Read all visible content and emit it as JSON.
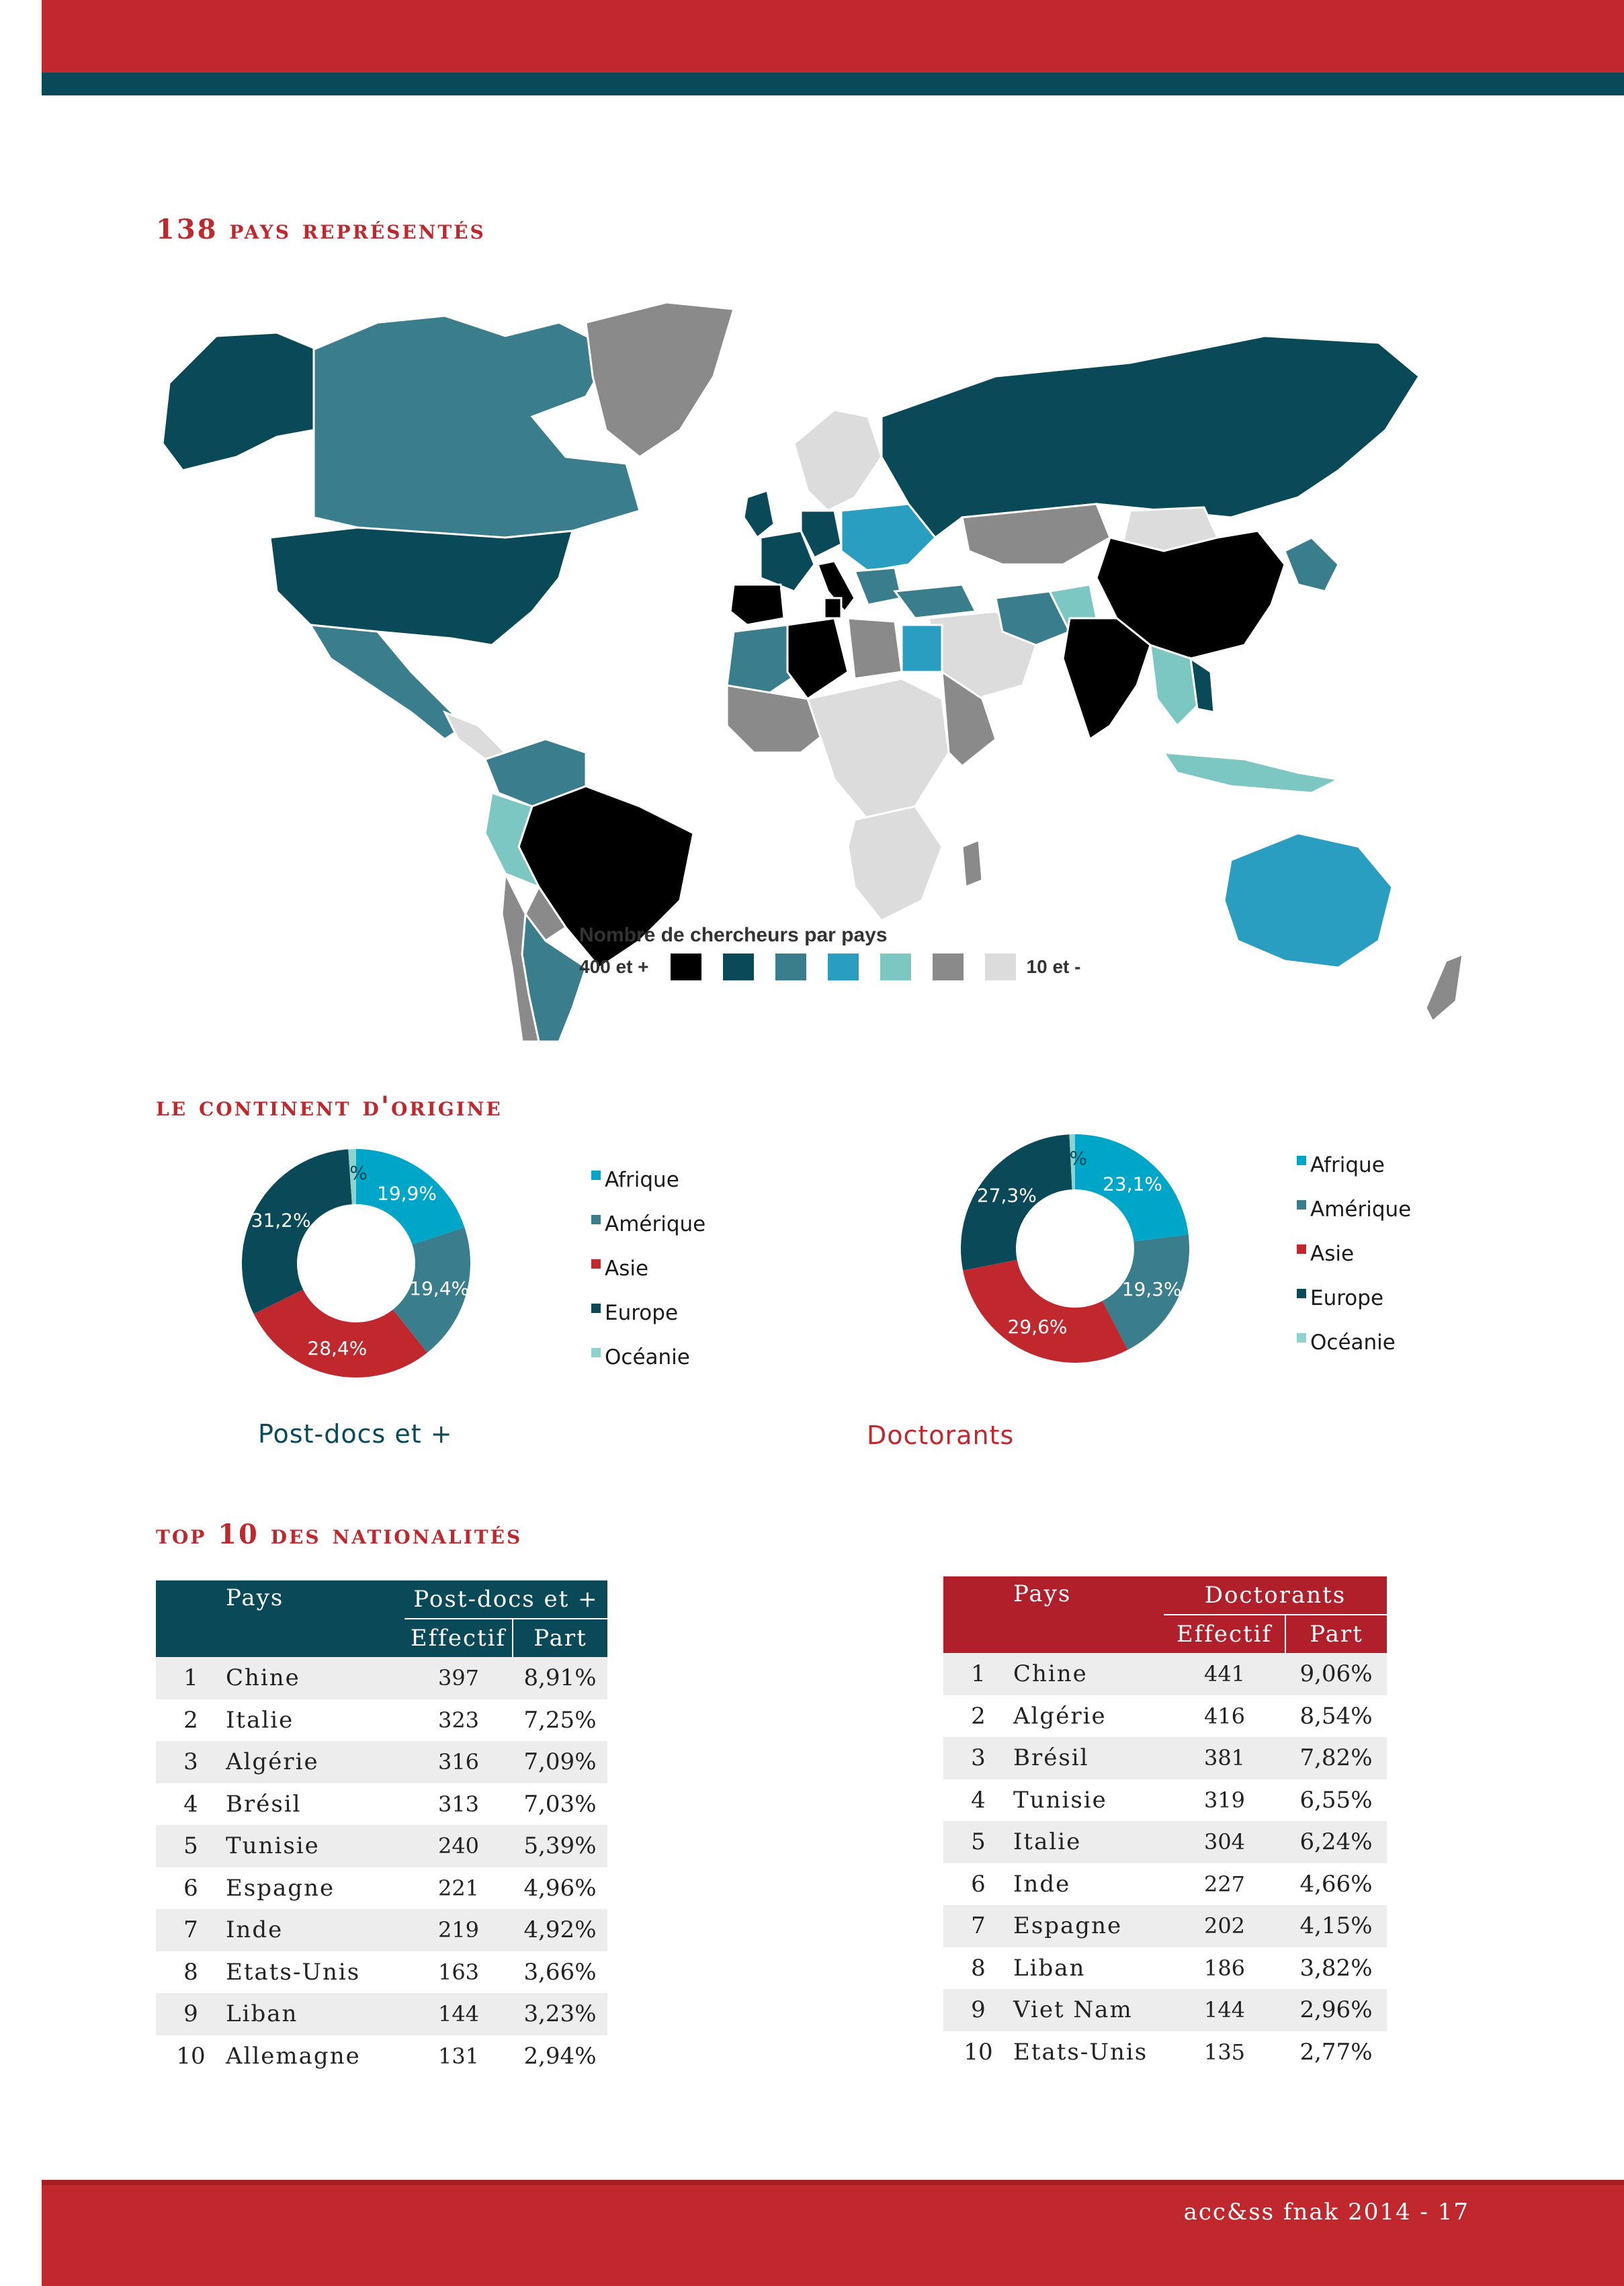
{
  "footer": "acc&ss fnak 2014 - 17",
  "sections": {
    "map_title": "138 pays représentés",
    "continent_title": "le continent d'origine",
    "top10_title": "top 10 des nationalités"
  },
  "map": {
    "legend_title": "Nombre de chercheurs par pays",
    "legend_high": "400 et +",
    "legend_low": "10 et -",
    "scale_colors": [
      "#000000",
      "#0a4a58",
      "#3a7d8c",
      "#2a9ec0",
      "#7cc7c2",
      "#8a8a8a",
      "#dcdcdc"
    ]
  },
  "legend_labels": {
    "afrique": "Afrique",
    "amerique": "Amérique",
    "asie": "Asie",
    "europe": "Europe",
    "oceanie": "Océanie"
  },
  "continent_colors": {
    "afrique": "#00a6c8",
    "amerique": "#3a7d8c",
    "asie": "#c0282e",
    "europe": "#0a4a58",
    "oceanie": "#8fd3d0"
  },
  "donut_postdocs": {
    "caption": "Post-docs et +",
    "labels": [
      "19,9%",
      "19,4%",
      "28,4%",
      "31,2%",
      "1,1%"
    ]
  },
  "donut_doctorants": {
    "caption": "Doctorants",
    "labels": [
      "23,1%",
      "19,3%",
      "29,6%",
      "27,3%",
      "0,8%"
    ]
  },
  "chart_data": [
    {
      "type": "pie",
      "categories": [
        "Afrique",
        "Amérique",
        "Asie",
        "Europe",
        "Océanie"
      ],
      "values": [
        19.9,
        19.4,
        28.4,
        31.2,
        1.1
      ],
      "title": "Post-docs et +"
    },
    {
      "type": "pie",
      "categories": [
        "Afrique",
        "Amérique",
        "Asie",
        "Europe",
        "Océanie"
      ],
      "values": [
        23.1,
        19.3,
        29.6,
        27.3,
        0.8
      ],
      "title": "Doctorants"
    }
  ],
  "table_postdocs": {
    "head_pays": "Pays",
    "head_group": "Post-docs et +",
    "head_effectif": "Effectif",
    "head_part": "Part",
    "rows": [
      {
        "rank": "1",
        "pays": "Chine",
        "effectif": "397",
        "part": "8,91%"
      },
      {
        "rank": "2",
        "pays": "Italie",
        "effectif": "323",
        "part": "7,25%"
      },
      {
        "rank": "3",
        "pays": "Algérie",
        "effectif": "316",
        "part": "7,09%"
      },
      {
        "rank": "4",
        "pays": "Brésil",
        "effectif": "313",
        "part": "7,03%"
      },
      {
        "rank": "5",
        "pays": "Tunisie",
        "effectif": "240",
        "part": "5,39%"
      },
      {
        "rank": "6",
        "pays": "Espagne",
        "effectif": "221",
        "part": "4,96%"
      },
      {
        "rank": "7",
        "pays": "Inde",
        "effectif": "219",
        "part": "4,92%"
      },
      {
        "rank": "8",
        "pays": "Etats-Unis",
        "effectif": "163",
        "part": "3,66%"
      },
      {
        "rank": "9",
        "pays": "Liban",
        "effectif": "144",
        "part": "3,23%"
      },
      {
        "rank": "10",
        "pays": "Allemagne",
        "effectif": "131",
        "part": "2,94%"
      }
    ]
  },
  "table_doctorants": {
    "head_pays": "Pays",
    "head_group": "Doctorants",
    "head_effectif": "Effectif",
    "head_part": "Part",
    "rows": [
      {
        "rank": "1",
        "pays": "Chine",
        "effectif": "441",
        "part": "9,06%"
      },
      {
        "rank": "2",
        "pays": "Algérie",
        "effectif": "416",
        "part": "8,54%"
      },
      {
        "rank": "3",
        "pays": "Brésil",
        "effectif": "381",
        "part": "7,82%"
      },
      {
        "rank": "4",
        "pays": "Tunisie",
        "effectif": "319",
        "part": "6,55%"
      },
      {
        "rank": "5",
        "pays": "Italie",
        "effectif": "304",
        "part": "6,24%"
      },
      {
        "rank": "6",
        "pays": "Inde",
        "effectif": "227",
        "part": "4,66%"
      },
      {
        "rank": "7",
        "pays": "Espagne",
        "effectif": "202",
        "part": "4,15%"
      },
      {
        "rank": "8",
        "pays": "Liban",
        "effectif": "186",
        "part": "3,82%"
      },
      {
        "rank": "9",
        "pays": "Viet Nam",
        "effectif": "144",
        "part": "2,96%"
      },
      {
        "rank": "10",
        "pays": "Etats-Unis",
        "effectif": "135",
        "part": "2,77%"
      }
    ]
  }
}
